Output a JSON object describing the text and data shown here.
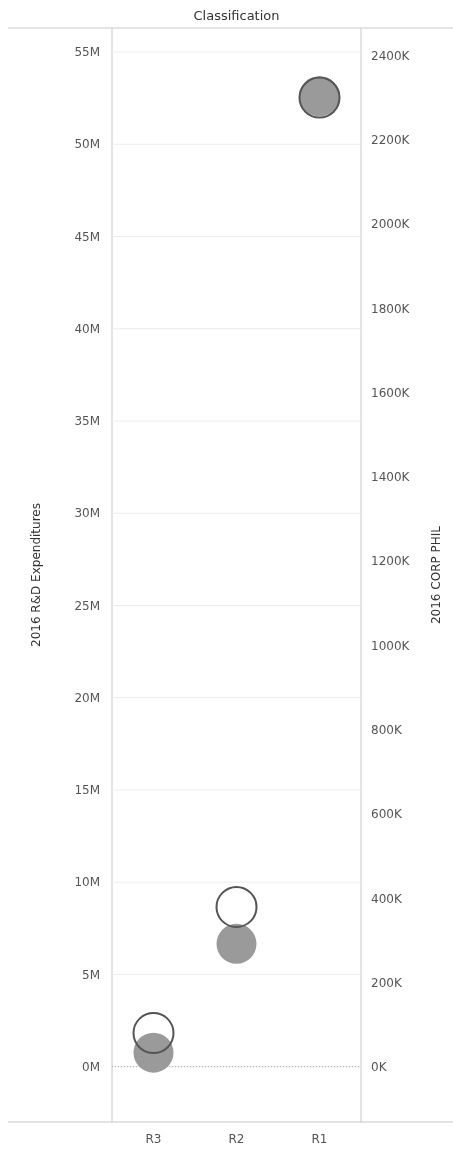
{
  "chart_data": {
    "type": "scatter",
    "title": "Classification",
    "ylabel": "2016 R&D Expenditures",
    "y2label": "2016 CORP PHIL",
    "categories": [
      "R3",
      "R2",
      "R1"
    ],
    "series": [
      {
        "color": "#9a9a9a",
        "values": [
          0.76,
          6.66,
          52.6
        ]
      },
      {
        "color": "#555555",
        "axis": "y2",
        "values": [
          81,
          380,
          2300
        ]
      }
    ],
    "ylim": [
      -3,
      56.3
    ],
    "yticks": [
      {
        "value": 0,
        "label": "0M"
      },
      {
        "value": 5,
        "label": "5M"
      },
      {
        "value": 10,
        "label": "10M"
      },
      {
        "value": 15,
        "label": "15M"
      },
      {
        "value": 20,
        "label": "20M"
      },
      {
        "value": 25,
        "label": "25M"
      },
      {
        "value": 30,
        "label": "30M"
      },
      {
        "value": 35,
        "label": "35M"
      },
      {
        "value": 40,
        "label": "40M"
      },
      {
        "value": 45,
        "label": "45M"
      },
      {
        "value": 50,
        "label": "50M"
      },
      {
        "value": 55,
        "label": "55M"
      }
    ],
    "y2lim": [
      -130,
      2465
    ],
    "y2ticks": [
      {
        "value": 0,
        "label": "0K"
      },
      {
        "value": 200,
        "label": "200K"
      },
      {
        "value": 400,
        "label": "400K"
      },
      {
        "value": 600,
        "label": "600K"
      },
      {
        "value": 800,
        "label": "800K"
      },
      {
        "value": 1000,
        "label": "1000K"
      },
      {
        "value": 1200,
        "label": "1200K"
      },
      {
        "value": 1400,
        "label": "1400K"
      },
      {
        "value": 1600,
        "label": "1600K"
      },
      {
        "value": 1800,
        "label": "1800K"
      },
      {
        "value": 2000,
        "label": "2000K"
      },
      {
        "value": 2200,
        "label": "2200K"
      },
      {
        "value": 2400,
        "label": "2400K"
      }
    ],
    "ref_lines": [
      {
        "axis": "y",
        "value": 0,
        "color": "#aaaaaa",
        "line_style": "dotted"
      }
    ],
    "grid": "y",
    "marker": "circle"
  }
}
